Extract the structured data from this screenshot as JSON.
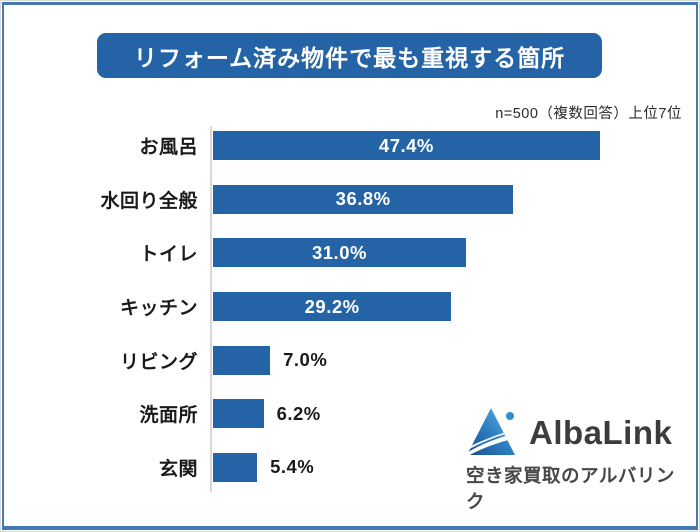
{
  "title": {
    "text": "リフォーム済み物件で最も重視する箇所"
  },
  "subtitle": "n=500（複数回答）上位7位",
  "chart_data": {
    "type": "bar",
    "orientation": "horizontal",
    "title": "リフォーム済み物件で最も重視する箇所",
    "note": "n=500（複数回答）上位7位",
    "categories": [
      "お風呂",
      "水回り全般",
      "トイレ",
      "キッチン",
      "リビング",
      "洗面所",
      "玄関"
    ],
    "values": [
      47.4,
      36.8,
      31.0,
      29.2,
      7.0,
      6.2,
      5.4
    ],
    "value_labels": [
      "47.4%",
      "36.8%",
      "31.0%",
      "29.2%",
      "7.0%",
      "6.2%",
      "5.4%"
    ],
    "bar_color": "#2463a6",
    "xlim": [
      0,
      50
    ],
    "grid": false,
    "legend": "none"
  },
  "colors": {
    "accent_blue": "#2463a6",
    "frame_blue": "#4678b0",
    "axis_gray": "#d9d9d9",
    "text_dark": "#1a1a1a"
  },
  "logo": {
    "name": "AlbaLink",
    "tagline": "空き家買取のアルバリンク"
  }
}
